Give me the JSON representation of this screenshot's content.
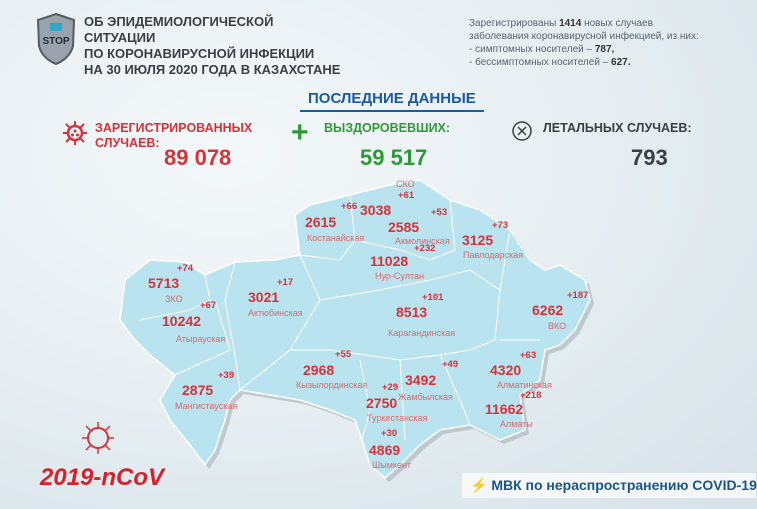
{
  "header": {
    "title_lines": [
      "ОБ ЭПИДЕМИОЛОГИЧЕСКОЙ СИТУАЦИИ",
      "ПО КОРОНАВИРУСНОЙ ИНФЕКЦИИ",
      "НА 30 ИЮЛЯ 2020 ГОДА В КАЗАХСТАНЕ"
    ],
    "logo_text": "STOP"
  },
  "info": {
    "line1_a": "Зарегистрированы ",
    "new_cases": "1414",
    "line1_b": " новых случаев",
    "line2": "заболевания коронавирусной инфекцией, из них:",
    "sym_label": "- симптомных носителей – ",
    "sym": "787,",
    "asym_label": "- бессимптомных носителей – ",
    "asym": "627."
  },
  "latest_title": "ПОСЛЕДНИЕ ДАННЫЕ",
  "stats": {
    "registered": {
      "label1": "ЗАРЕГИСТРИРОВАННЫХ",
      "label2": "СЛУЧАЕВ:",
      "value": "89 078",
      "color": "#d6323a"
    },
    "recovered": {
      "label": "ВЫЗДОРОВЕВШИХ:",
      "value": "59 517",
      "color": "#2e9a35"
    },
    "deaths": {
      "label": "ЛЕТАЛЬНЫХ СЛУЧАЕВ:",
      "value": "793",
      "color": "#3a3f45"
    }
  },
  "regions": [
    {
      "name": "Костанайская",
      "total": "2615",
      "new": "+66"
    },
    {
      "name": "СКО",
      "total": "3038",
      "new": "+61"
    },
    {
      "name": "Акмолинская",
      "total": "2585",
      "new": "+53"
    },
    {
      "name": "Нур-Султан",
      "total": "11028",
      "new": "+232"
    },
    {
      "name": "Павлодарская",
      "total": "3125",
      "new": "+73"
    },
    {
      "name": "ЗКО",
      "total": "5713",
      "new": "+74"
    },
    {
      "name": "Атырауская",
      "total": "10242",
      "new": "+67"
    },
    {
      "name": "Актюбинская",
      "total": "3021",
      "new": "+17"
    },
    {
      "name": "Карагандинская",
      "total": "8513",
      "new": "+101"
    },
    {
      "name": "ВКО",
      "total": "6262",
      "new": "+187"
    },
    {
      "name": "Мангистауская",
      "total": "2875",
      "new": "+39"
    },
    {
      "name": "Кызылординская",
      "total": "2968",
      "new": "+55"
    },
    {
      "name": "Туркестанская",
      "total": "2750",
      "new": "+29"
    },
    {
      "name": "Жамбылская",
      "total": "3492",
      "new": "+49"
    },
    {
      "name": "Алматинская",
      "total": "4320",
      "new": "+63"
    },
    {
      "name": "Алматы",
      "total": "11662",
      "new": "+218"
    },
    {
      "name": "Шымкент",
      "total": "4869",
      "new": "+30"
    }
  ],
  "footer": {
    "ncov": "2019-nCoV",
    "source": "МВК по нераспространению COVID-19"
  },
  "colors": {
    "map_fill": "#b9e3ef",
    "accent_red": "#d6323a",
    "accent_blue": "#1b5aa0"
  }
}
